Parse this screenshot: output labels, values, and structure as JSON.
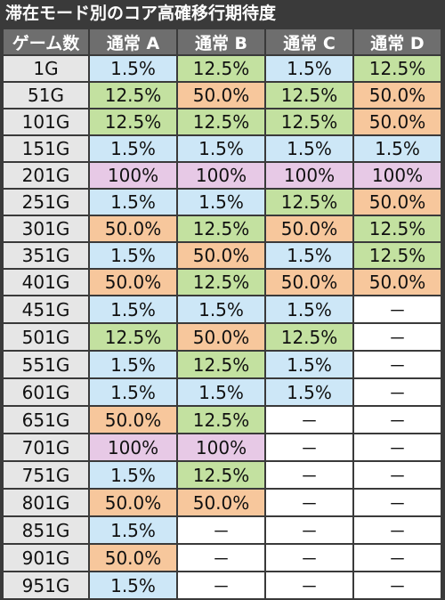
{
  "title": "滞在モード別のコア高確移行期待度",
  "headers": [
    "ゲーム数",
    "通常 A",
    "通常 B",
    "通常 C",
    "通常 D"
  ],
  "colors": {
    "blue": "#cde7f7",
    "green": "#c3e1a0",
    "orange": "#f7c79c",
    "purple": "#e7c9e6",
    "none": "#ffffff"
  },
  "rows": [
    {
      "game": "1G",
      "values": [
        "1.5%",
        "12.5%",
        "1.5%",
        "12.5%"
      ]
    },
    {
      "game": "51G",
      "values": [
        "12.5%",
        "50.0%",
        "12.5%",
        "50.0%"
      ]
    },
    {
      "game": "101G",
      "values": [
        "12.5%",
        "12.5%",
        "12.5%",
        "50.0%"
      ]
    },
    {
      "game": "151G",
      "values": [
        "1.5%",
        "1.5%",
        "1.5%",
        "1.5%"
      ]
    },
    {
      "game": "201G",
      "values": [
        "100%",
        "100%",
        "100%",
        "100%"
      ]
    },
    {
      "game": "251G",
      "values": [
        "1.5%",
        "1.5%",
        "12.5%",
        "50.0%"
      ]
    },
    {
      "game": "301G",
      "values": [
        "50.0%",
        "12.5%",
        "50.0%",
        "12.5%"
      ]
    },
    {
      "game": "351G",
      "values": [
        "1.5%",
        "50.0%",
        "1.5%",
        "12.5%"
      ]
    },
    {
      "game": "401G",
      "values": [
        "50.0%",
        "12.5%",
        "50.0%",
        "50.0%"
      ]
    },
    {
      "game": "451G",
      "values": [
        "1.5%",
        "1.5%",
        "1.5%",
        "－"
      ]
    },
    {
      "game": "501G",
      "values": [
        "12.5%",
        "50.0%",
        "12.5%",
        "－"
      ]
    },
    {
      "game": "551G",
      "values": [
        "1.5%",
        "12.5%",
        "1.5%",
        "－"
      ]
    },
    {
      "game": "601G",
      "values": [
        "1.5%",
        "1.5%",
        "1.5%",
        "－"
      ]
    },
    {
      "game": "651G",
      "values": [
        "50.0%",
        "12.5%",
        "－",
        "－"
      ]
    },
    {
      "game": "701G",
      "values": [
        "100%",
        "100%",
        "－",
        "－"
      ]
    },
    {
      "game": "751G",
      "values": [
        "1.5%",
        "12.5%",
        "－",
        "－"
      ]
    },
    {
      "game": "801G",
      "values": [
        "50.0%",
        "50.0%",
        "－",
        "－"
      ]
    },
    {
      "game": "851G",
      "values": [
        "1.5%",
        "－",
        "－",
        "－"
      ]
    },
    {
      "game": "901G",
      "values": [
        "50.0%",
        "－",
        "－",
        "－"
      ]
    },
    {
      "game": "951G",
      "values": [
        "1.5%",
        "－",
        "－",
        "－"
      ]
    }
  ]
}
